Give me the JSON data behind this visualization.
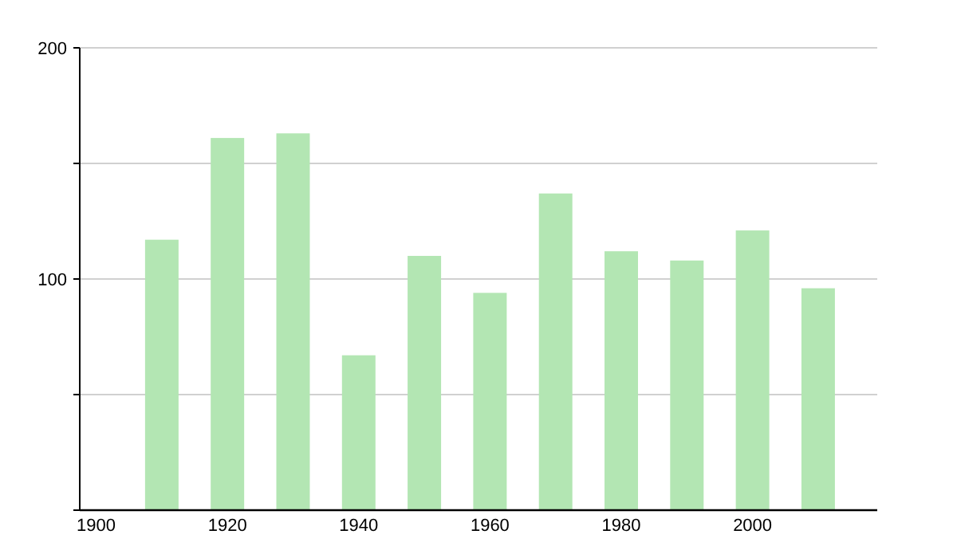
{
  "chart_data": {
    "type": "bar",
    "x": [
      1910,
      1920,
      1930,
      1940,
      1950,
      1960,
      1970,
      1980,
      1990,
      2000,
      2010
    ],
    "values": [
      117,
      161,
      163,
      67,
      110,
      94,
      137,
      112,
      108,
      121,
      96
    ],
    "color": "#b3e6b3",
    "xlim": [
      1897.5,
      2019
    ],
    "xticks": [
      1900,
      1920,
      1940,
      1960,
      1980,
      2000
    ],
    "ylim": [
      0,
      200
    ],
    "yticks": [
      {
        "value": 0,
        "label": null
      },
      {
        "value": 50,
        "label": null
      },
      100,
      {
        "value": 150,
        "label": null
      },
      200
    ],
    "grid": "y"
  }
}
